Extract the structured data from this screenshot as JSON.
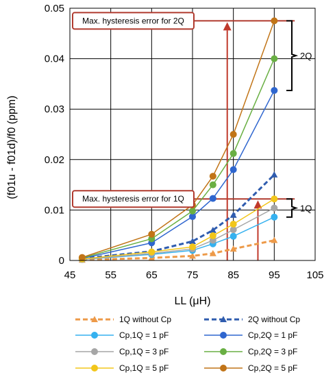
{
  "chart_data": {
    "type": "line",
    "xlabel": "LL (μH)",
    "ylabel": "(f01u - f01d)/f0 (ppm)",
    "xlim": [
      45,
      105
    ],
    "ylim": [
      0,
      0.05
    ],
    "x_ticks": [
      "45",
      "55",
      "65",
      "75",
      "85",
      "95",
      "105"
    ],
    "y_ticks": [
      "0",
      "0.01",
      "0.02",
      "0.03",
      "0.04",
      "0.05"
    ],
    "grid": true,
    "legend_position": "bottom",
    "x": [
      48,
      65,
      75,
      80,
      85,
      95
    ],
    "series": [
      {
        "name": "1Q without Cp",
        "color": "#ED9A49",
        "dashed": true,
        "marker": "triangle",
        "values": [
          0.0001,
          0.0005,
          0.0009,
          0.0014,
          0.0023,
          0.004
        ]
      },
      {
        "name": "2Q without Cp",
        "color": "#2F5CAE",
        "dashed": true,
        "marker": "triangle",
        "values": [
          0.0004,
          0.0018,
          0.0038,
          0.006,
          0.009,
          0.017
        ]
      },
      {
        "name": "Cp,1Q = 1 pF",
        "color": "#35B1EF",
        "dashed": false,
        "marker": "circle",
        "values": [
          0.0002,
          0.0012,
          0.002,
          0.0033,
          0.0048,
          0.0086
        ]
      },
      {
        "name": "Cp,2Q = 1 pF",
        "color": "#2F66CF",
        "dashed": false,
        "marker": "circle",
        "values": [
          0.0004,
          0.0035,
          0.0087,
          0.0123,
          0.018,
          0.0337
        ]
      },
      {
        "name": "Cp,1Q = 3 pF",
        "color": "#A6A6A6",
        "dashed": false,
        "marker": "circle",
        "values": [
          0.0002,
          0.0014,
          0.0023,
          0.004,
          0.0061,
          0.0104
        ]
      },
      {
        "name": "Cp,2Q = 3 pF",
        "color": "#69AF43",
        "dashed": false,
        "marker": "circle",
        "values": [
          0.0005,
          0.0043,
          0.0098,
          0.015,
          0.0212,
          0.04
        ]
      },
      {
        "name": "Cp,1Q = 5 pF",
        "color": "#F2C61A",
        "dashed": false,
        "marker": "circle",
        "values": [
          0.0003,
          0.0017,
          0.0027,
          0.0049,
          0.0072,
          0.0122
        ]
      },
      {
        "name": "Cp,2Q = 5 pF",
        "color": "#C17417",
        "dashed": false,
        "marker": "circle",
        "values": [
          0.0006,
          0.0052,
          0.011,
          0.0167,
          0.025,
          0.0475
        ]
      }
    ],
    "annotations": [
      {
        "text": "Max. hysteresis error for 2Q",
        "value": 0.0475,
        "arrow_x": 83.5
      },
      {
        "text": "Max. hysteresis error for 1Q",
        "value": 0.0122,
        "arrow_x": 91
      },
      {
        "text": "2Q",
        "range": [
          0.0337,
          0.0475
        ]
      },
      {
        "text": "1Q",
        "range": [
          0.0086,
          0.0122
        ]
      }
    ],
    "annotation_color": "#B03A2E",
    "arrow_color": "#C0392B"
  }
}
